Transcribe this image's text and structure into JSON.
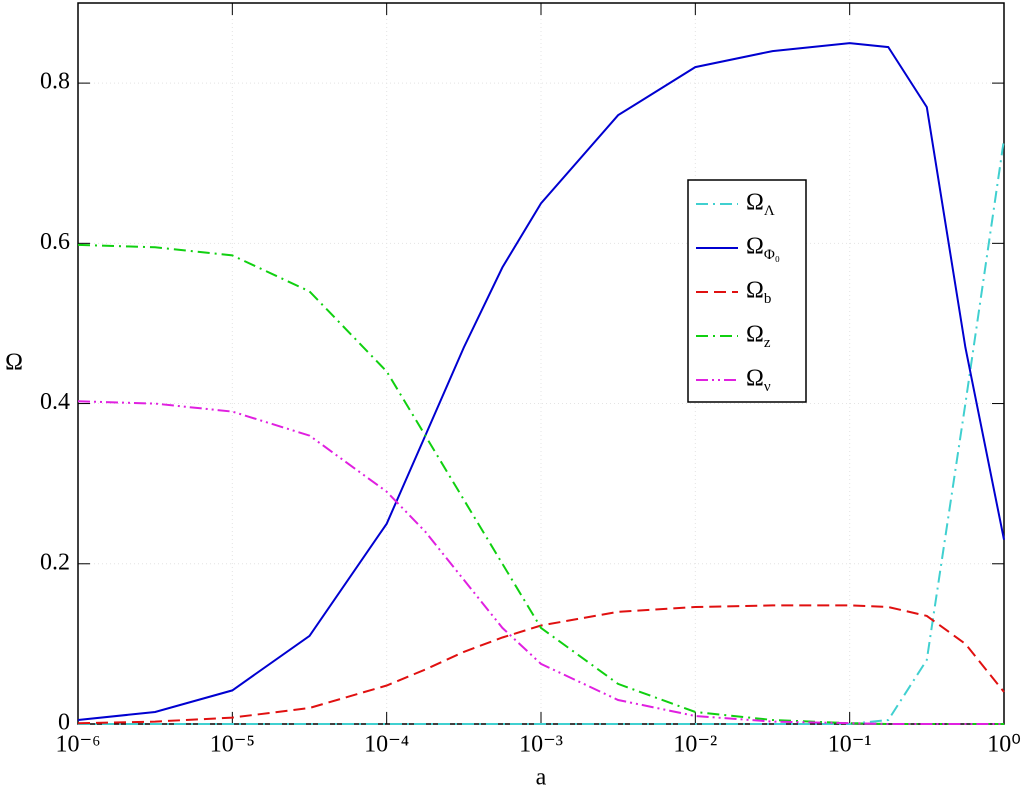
{
  "chart_data": {
    "type": "line",
    "x_label": "a",
    "y_label": "Ω",
    "x": [
      1e-06,
      3.16e-06,
      1e-05,
      3.16e-05,
      0.0001,
      0.000178,
      0.000316,
      0.000562,
      0.001,
      0.00316,
      0.01,
      0.0316,
      0.1,
      0.178,
      0.316,
      0.562,
      1
    ],
    "series": [
      {
        "name": "ΩΛ",
        "color": "#40d0d0",
        "style": "dash-dot",
        "values": [
          0,
          0,
          0,
          0,
          0,
          0,
          0,
          0,
          0,
          0,
          0,
          0,
          0,
          0.005,
          0.08,
          0.4,
          0.73
        ]
      },
      {
        "name": "ΩΦ₀",
        "color": "#0000d0",
        "style": "solid",
        "values": [
          0.005,
          0.015,
          0.042,
          0.11,
          0.25,
          0.36,
          0.47,
          0.57,
          0.65,
          0.76,
          0.82,
          0.84,
          0.85,
          0.845,
          0.77,
          0.47,
          0.23
        ]
      },
      {
        "name": "Ωb",
        "color": "#e01010",
        "style": "dashed",
        "values": [
          0.001,
          0.003,
          0.008,
          0.02,
          0.048,
          0.068,
          0.09,
          0.108,
          0.123,
          0.14,
          0.146,
          0.148,
          0.148,
          0.146,
          0.135,
          0.1,
          0.04
        ]
      },
      {
        "name": "Ωz",
        "color": "#10d010",
        "style": "dash-dot",
        "values": [
          0.598,
          0.595,
          0.585,
          0.54,
          0.44,
          0.36,
          0.28,
          0.2,
          0.12,
          0.05,
          0.015,
          0.005,
          0.001,
          0,
          0,
          0,
          0
        ]
      },
      {
        "name": "Ων",
        "color": "#e020e0",
        "style": "dash-dot-dot",
        "values": [
          0.403,
          0.4,
          0.39,
          0.36,
          0.29,
          0.24,
          0.18,
          0.12,
          0.075,
          0.03,
          0.01,
          0.003,
          0.001,
          0,
          0,
          0,
          0
        ]
      }
    ],
    "x_scale": "log",
    "xlim": [
      1e-06,
      1
    ],
    "xticks": [
      {
        "value": 1e-06,
        "label": "10⁻⁶"
      },
      {
        "value": 1e-05,
        "label": "10⁻⁵"
      },
      {
        "value": 0.0001,
        "label": "10⁻⁴"
      },
      {
        "value": 0.001,
        "label": "10⁻³"
      },
      {
        "value": 0.01,
        "label": "10⁻²"
      },
      {
        "value": 0.1,
        "label": "10⁻¹"
      },
      {
        "value": 1,
        "label": "10⁰"
      }
    ],
    "ylim": [
      0,
      0.9
    ],
    "yticks": [
      0,
      0.2,
      0.4,
      0.6,
      0.8
    ],
    "grid": true,
    "legend": "center-right"
  }
}
